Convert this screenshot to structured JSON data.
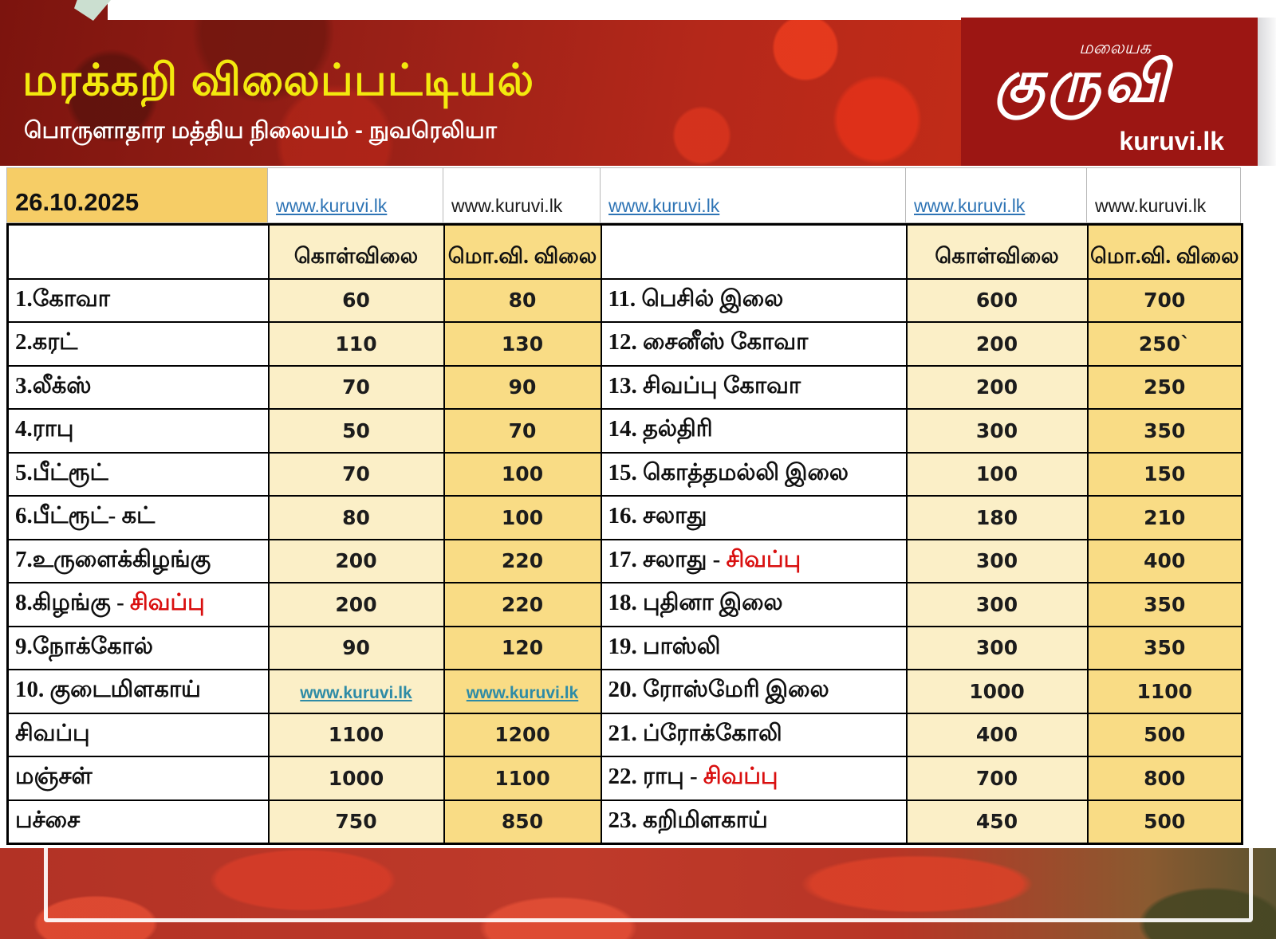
{
  "header": {
    "title": "மரக்கறி விலைப்பட்டியல்",
    "subtitle": "பொருளாதார மத்திய நிலையம் - நுவரெலியா",
    "logo": {
      "top_word": "மலையக",
      "main_word": "குருவி",
      "site": "kuruvi.lk"
    }
  },
  "date_row": {
    "date": "26.10.2025",
    "links": [
      {
        "text": "www.kuruvi.lk",
        "style": "link"
      },
      {
        "text": "www.kuruvi.lk",
        "style": "plain"
      },
      {
        "text": "www.kuruvi.lk",
        "style": "link"
      },
      {
        "text": "www.kuruvi.lk",
        "style": "link"
      },
      {
        "text": "www.kuruvi.lk",
        "style": "plain"
      }
    ]
  },
  "table": {
    "col_headers": {
      "buy": "கொள்விலை",
      "wholesale": "மொ.வி. விலை"
    },
    "left_rows": [
      {
        "name": "1.கோவா",
        "buy": "60",
        "ws": "80"
      },
      {
        "name": "2.கரட்",
        "buy": "110",
        "ws": "130"
      },
      {
        "name": "3.லீக்ஸ்",
        "buy": "70",
        "ws": "90"
      },
      {
        "name": "4.ராபு",
        "buy": "50",
        "ws": "70"
      },
      {
        "name": "5.பீட்ரூட்",
        "buy": "70",
        "ws": "100"
      },
      {
        "name": "6.பீட்ரூட்- கட்",
        "buy": "80",
        "ws": "100"
      },
      {
        "name": "7.உருளைக்கிழங்கு",
        "buy": "200",
        "ws": "220"
      },
      {
        "name": "8.கிழங்கு - ",
        "red": "சிவப்பு",
        "buy": "200",
        "ws": "220"
      },
      {
        "name": "9.நோக்கோல்",
        "buy": "90",
        "ws": "120"
      },
      {
        "name": "10. குடைமிளகாய்",
        "link": true,
        "buy": "www.kuruvi.lk",
        "ws": "www.kuruvi.lk"
      },
      {
        "name": "சிவப்பு",
        "bg": "red",
        "buy": "1100",
        "ws": "1200"
      },
      {
        "name": "மஞ்சள்",
        "bg": "yellow",
        "buy": "1000",
        "ws": "1100"
      },
      {
        "name": "பச்சை",
        "bg": "green",
        "buy": "750",
        "ws": "850"
      }
    ],
    "right_rows": [
      {
        "name": "11. பெசில் இலை",
        "buy": "600",
        "ws": "700"
      },
      {
        "name": "12. சைனீஸ் கோவா",
        "buy": "200",
        "ws": "250`"
      },
      {
        "name": "13. சிவப்பு கோவா",
        "buy": "200",
        "ws": "250"
      },
      {
        "name": "14. தல்திரி",
        "buy": "300",
        "ws": "350"
      },
      {
        "name": "15. கொத்தமல்லி இலை",
        "buy": "100",
        "ws": "150"
      },
      {
        "name": "16. சலாது",
        "buy": "180",
        "ws": "210"
      },
      {
        "name": "17. சலாது - ",
        "red": "சிவப்பு",
        "buy": "300",
        "ws": "400"
      },
      {
        "name": "18. புதினா இலை",
        "buy": "300",
        "ws": "350"
      },
      {
        "name": "19. பாஸ்லி",
        "buy": "300",
        "ws": "350"
      },
      {
        "name": "20. ரோஸ்மேரி இலை",
        "buy": "1000",
        "ws": "1100"
      },
      {
        "name": "21. ப்ரோக்கோலி",
        "buy": "400",
        "ws": "500"
      },
      {
        "name": "22. ராபு - ",
        "red": "சிவப்பு",
        "buy": "700",
        "ws": "800"
      },
      {
        "name": "23. கறிமிளகாய்",
        "buy": "450",
        "ws": "500"
      }
    ]
  },
  "colors": {
    "header_band": "#9c1613",
    "title_yellow": "#f3e90e",
    "date_amber": "#f6cd66",
    "cell_cream": "#fbefc7",
    "cell_gold": "#f9dc85",
    "row_red": "#ee1111",
    "row_yellow": "#f1ee10",
    "row_green": "#6fa04a",
    "red_text": "#d90f0f",
    "link_blue": "#2e74b5",
    "link_teal": "#2e8ba6"
  }
}
